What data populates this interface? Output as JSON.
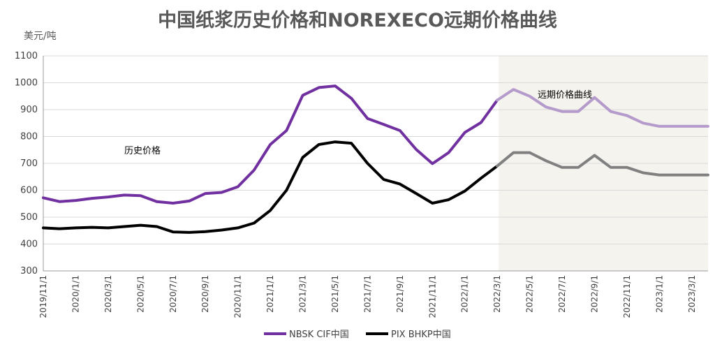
{
  "chart_data": {
    "type": "line",
    "title": "中国纸浆历史价格和NOREXECO远期价格曲线",
    "ylabel": "美元/吨",
    "ylim": [
      300,
      1100
    ],
    "yticks": [
      "300",
      "400",
      "500",
      "600",
      "700",
      "800",
      "900",
      "1000",
      "1100"
    ],
    "grid": "horizontal",
    "legend_position": "bottom",
    "x_tick_labels": [
      "2019/11/1",
      "2020/1/1",
      "2020/3/1",
      "2020/5/1",
      "2020/7/1",
      "2020/9/1",
      "2020/11/1",
      "2021/1/1",
      "2021/3/1",
      "2021/5/1",
      "2021/7/1",
      "2021/9/1",
      "2021/11/1",
      "2022/1/1",
      "2022/3/1",
      "2022/5/1",
      "2022/7/1",
      "2022/9/1",
      "2022/11/1",
      "2023/1/1",
      "2023/3/1"
    ],
    "x": [
      "2019-11",
      "2019-12",
      "2020-01",
      "2020-02",
      "2020-03",
      "2020-04",
      "2020-05",
      "2020-06",
      "2020-07",
      "2020-08",
      "2020-09",
      "2020-10",
      "2020-11",
      "2020-12",
      "2021-01",
      "2021-02",
      "2021-03",
      "2021-04",
      "2021-05",
      "2021-06",
      "2021-07",
      "2021-08",
      "2021-09",
      "2021-10",
      "2021-11",
      "2021-12",
      "2022-01",
      "2022-02",
      "2022-03",
      "2022-04",
      "2022-05",
      "2022-06",
      "2022-07",
      "2022-08",
      "2022-09",
      "2022-10",
      "2022-11",
      "2022-12",
      "2023-01",
      "2023-02",
      "2023-03",
      "2023-04"
    ],
    "forecast_start": "2022-03",
    "series": [
      {
        "name": "NBSK CIF中国",
        "color": "#7030a0",
        "forecast_color": "#b49bcb",
        "values": [
          572,
          558,
          562,
          570,
          575,
          582,
          580,
          558,
          552,
          560,
          588,
          592,
          613,
          675,
          770,
          822,
          953,
          982,
          988,
          942,
          867,
          845,
          822,
          752,
          699,
          740,
          815,
          852,
          935,
          975,
          950,
          910,
          893,
          893,
          945,
          893,
          878,
          850,
          838,
          838,
          838,
          838
        ]
      },
      {
        "name": "PIX BHKP中国",
        "color": "#000000",
        "forecast_color": "#808080",
        "values": [
          460,
          457,
          460,
          462,
          460,
          465,
          470,
          465,
          445,
          443,
          446,
          452,
          460,
          478,
          525,
          600,
          722,
          770,
          780,
          775,
          700,
          640,
          623,
          588,
          552,
          565,
          597,
          645,
          690,
          740,
          740,
          710,
          685,
          685,
          730,
          685,
          685,
          665,
          657,
          657,
          657,
          657
        ]
      }
    ],
    "annotations": [
      "历史价格",
      "远期价格曲线"
    ]
  }
}
